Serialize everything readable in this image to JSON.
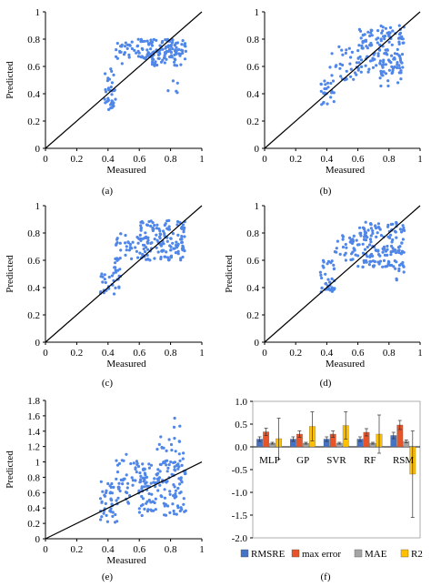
{
  "colors": {
    "point": "#4f86e8",
    "axis": "#000000",
    "RMSRE": "#4472c4",
    "max error": "#e8542a",
    "MAE": "#a5a5a5",
    "R2": "#ffc000"
  },
  "chart_data": [
    {
      "type": "scatter",
      "panel_label": "(a)",
      "xlabel": "Measured",
      "ylabel": "Predicted",
      "xlim": [
        0,
        1
      ],
      "ylim": [
        0,
        1
      ],
      "xticks": [
        "0",
        "0.2",
        "0.4",
        "0.6",
        "0.8",
        "1"
      ],
      "yticks": [
        "0",
        "0.2",
        "0.4",
        "0.6",
        "0.8",
        "1"
      ],
      "reference_line": "y = x",
      "clusters": [
        {
          "x": [
            0.37,
            0.45
          ],
          "y": [
            0.28,
            0.45
          ],
          "count": 30
        },
        {
          "x": [
            0.38,
            0.45
          ],
          "y": [
            0.48,
            0.6
          ],
          "count": 8
        },
        {
          "x": [
            0.45,
            0.58
          ],
          "y": [
            0.62,
            0.78
          ],
          "count": 25
        },
        {
          "x": [
            0.58,
            0.9
          ],
          "y": [
            0.65,
            0.8
          ],
          "count": 110
        },
        {
          "x": [
            0.68,
            0.9
          ],
          "y": [
            0.6,
            0.72
          ],
          "count": 25
        },
        {
          "x": [
            0.78,
            0.85
          ],
          "y": [
            0.4,
            0.5
          ],
          "count": 5
        }
      ]
    },
    {
      "type": "scatter",
      "panel_label": "(b)",
      "xlabel": "Measured",
      "ylabel": "",
      "xlim": [
        0,
        1
      ],
      "ylim": [
        0,
        1
      ],
      "xticks": [
        "0",
        "0.2",
        "0.4",
        "0.6",
        "0.8",
        "1"
      ],
      "yticks": [
        "0",
        "0.2",
        "0.4",
        "0.6",
        "0.8",
        "1"
      ],
      "reference_line": "y = x",
      "clusters": [
        {
          "x": [
            0.35,
            0.45
          ],
          "y": [
            0.32,
            0.5
          ],
          "count": 25
        },
        {
          "x": [
            0.42,
            0.6
          ],
          "y": [
            0.5,
            0.75
          ],
          "count": 30
        },
        {
          "x": [
            0.6,
            0.9
          ],
          "y": [
            0.55,
            0.9
          ],
          "count": 150
        },
        {
          "x": [
            0.72,
            0.88
          ],
          "y": [
            0.45,
            0.6
          ],
          "count": 12
        }
      ]
    },
    {
      "type": "scatter",
      "panel_label": "(c)",
      "xlabel": "Measured",
      "ylabel": "Predicted",
      "xlim": [
        0,
        1
      ],
      "ylim": [
        0,
        1
      ],
      "xticks": [
        "0",
        "0.2",
        "0.4",
        "0.6",
        "0.8",
        "1"
      ],
      "yticks": [
        "0",
        "0.2",
        "0.4",
        "0.6",
        "0.8",
        "1"
      ],
      "reference_line": "y = x",
      "clusters": [
        {
          "x": [
            0.35,
            0.48
          ],
          "y": [
            0.35,
            0.52
          ],
          "count": 30
        },
        {
          "x": [
            0.4,
            0.48
          ],
          "y": [
            0.52,
            0.62
          ],
          "count": 10
        },
        {
          "x": [
            0.45,
            0.6
          ],
          "y": [
            0.6,
            0.8
          ],
          "count": 30
        },
        {
          "x": [
            0.6,
            0.9
          ],
          "y": [
            0.6,
            0.9
          ],
          "count": 150
        }
      ]
    },
    {
      "type": "scatter",
      "panel_label": "(d)",
      "xlabel": "Measured",
      "ylabel": "Predicted",
      "xlim": [
        0,
        1
      ],
      "ylim": [
        0,
        1
      ],
      "xticks": [
        "0",
        "0.2",
        "0.4",
        "0.6",
        "0.8",
        "1"
      ],
      "yticks": [
        "0",
        "0.2",
        "0.4",
        "0.6",
        "0.8",
        "1"
      ],
      "reference_line": "y = x",
      "clusters": [
        {
          "x": [
            0.35,
            0.45
          ],
          "y": [
            0.36,
            0.6
          ],
          "count": 30
        },
        {
          "x": [
            0.4,
            0.45
          ],
          "y": [
            0.38,
            0.42
          ],
          "count": 10
        },
        {
          "x": [
            0.45,
            0.6
          ],
          "y": [
            0.6,
            0.8
          ],
          "count": 35
        },
        {
          "x": [
            0.6,
            0.9
          ],
          "y": [
            0.55,
            0.88
          ],
          "count": 150
        },
        {
          "x": [
            0.82,
            0.9
          ],
          "y": [
            0.45,
            0.58
          ],
          "count": 8
        }
      ]
    },
    {
      "type": "scatter",
      "panel_label": "(e)",
      "xlabel": "Measured",
      "ylabel": "Predicted",
      "xlim": [
        0,
        1
      ],
      "ylim": [
        0,
        1.8
      ],
      "xticks": [
        "0",
        "0.2",
        "0.4",
        "0.6",
        "0.8",
        "1"
      ],
      "yticks": [
        "0",
        "0.2",
        "0.4",
        "0.6",
        "0.8",
        "1",
        "1.2",
        "1.4",
        "1.6",
        "1.8"
      ],
      "reference_line": "y = x",
      "clusters": [
        {
          "x": [
            0.35,
            0.48
          ],
          "y": [
            0.2,
            0.75
          ],
          "count": 45
        },
        {
          "x": [
            0.45,
            0.6
          ],
          "y": [
            0.45,
            1.1
          ],
          "count": 40
        },
        {
          "x": [
            0.6,
            0.9
          ],
          "y": [
            0.3,
            1.0
          ],
          "count": 150
        },
        {
          "x": [
            0.7,
            0.9
          ],
          "y": [
            1.0,
            1.35
          ],
          "count": 20
        },
        {
          "x": [
            0.82,
            0.86
          ],
          "y": [
            1.45,
            1.6
          ],
          "count": 3
        }
      ]
    },
    {
      "type": "bar",
      "panel_label": "(f)",
      "categories": [
        "MLP",
        "GP",
        "SVR",
        "RF",
        "RSM"
      ],
      "ylim": [
        -2.0,
        1.0
      ],
      "yticks": [
        "1.0",
        "0.5",
        "0.0",
        "-0.5",
        "-1.0",
        "-1.5",
        "-2.0"
      ],
      "series": [
        {
          "name": "RMSRE",
          "values": [
            0.17,
            0.17,
            0.17,
            0.17,
            0.25
          ],
          "errors": [
            0.05,
            0.05,
            0.05,
            0.05,
            0.07
          ]
        },
        {
          "name": "max error",
          "values": [
            0.33,
            0.28,
            0.28,
            0.32,
            0.48
          ],
          "errors": [
            0.08,
            0.07,
            0.07,
            0.08,
            0.1
          ]
        },
        {
          "name": "MAE",
          "values": [
            0.08,
            0.08,
            0.08,
            0.08,
            0.12
          ],
          "errors": [
            0.02,
            0.02,
            0.02,
            0.02,
            0.03
          ]
        },
        {
          "name": "R2",
          "values": [
            0.18,
            0.45,
            0.47,
            0.28,
            -0.6
          ],
          "errors": [
            0.45,
            0.32,
            0.3,
            0.42,
            0.95
          ]
        }
      ]
    }
  ]
}
